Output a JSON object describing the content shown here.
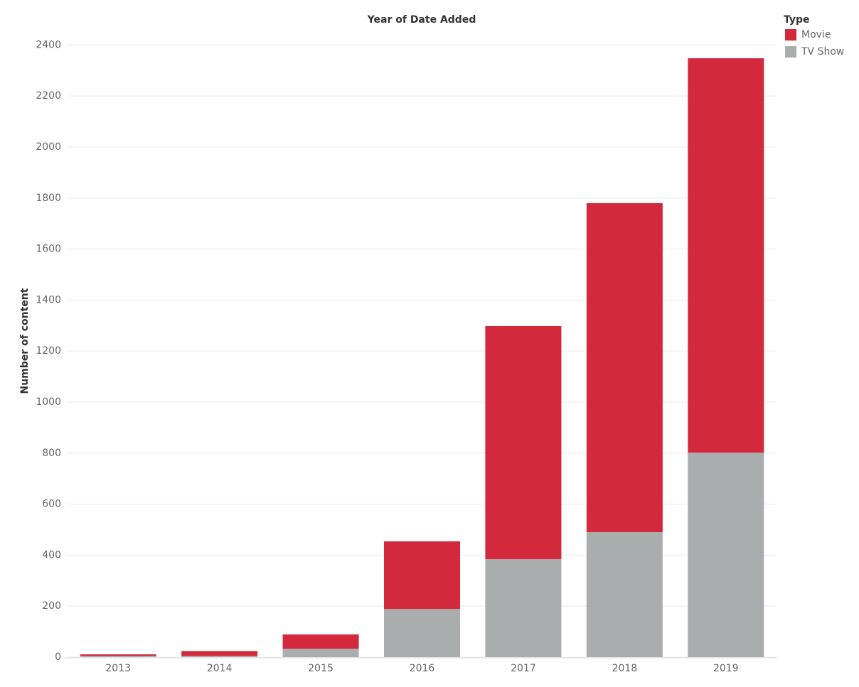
{
  "chart_data": {
    "type": "stacked_bar",
    "title": "Year of Date Added",
    "y_label": "Number of content",
    "legend_title": "Type",
    "categories": [
      "2013",
      "2014",
      "2015",
      "2016",
      "2017",
      "2018",
      "2019"
    ],
    "series": [
      {
        "name": "Movie",
        "color": "#d3293d",
        "values": [
          6,
          19,
          56,
          265,
          914,
          1290,
          1546
        ]
      },
      {
        "name": "TV Show",
        "color": "#aaadae",
        "values": [
          5,
          5,
          33,
          189,
          384,
          490,
          802
        ]
      }
    ],
    "ylim": [
      0,
      2465
    ],
    "yticks": [
      0,
      200,
      400,
      600,
      800,
      1000,
      1200,
      1400,
      1600,
      1800,
      2000,
      2200,
      2400
    ],
    "grid": true,
    "legend": "top-right"
  }
}
